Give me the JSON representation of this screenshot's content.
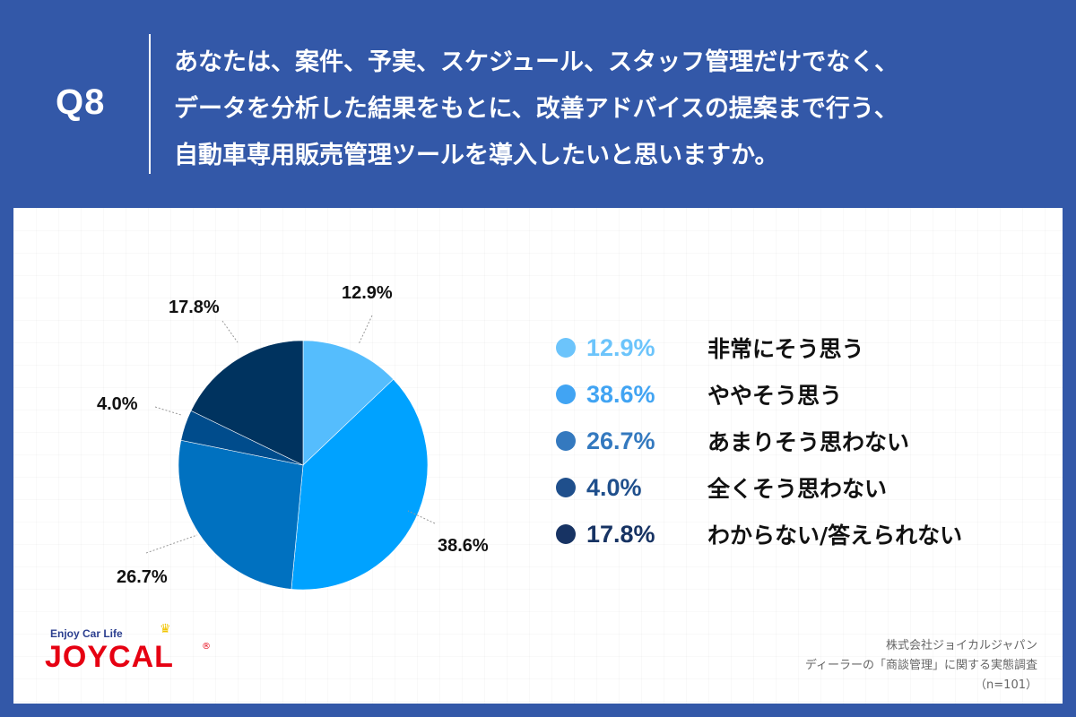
{
  "header": {
    "question_number": "Q8",
    "question_lines": [
      "あなたは、案件、予実、スケジュール、スタッフ管理だけでなく、",
      "データを分析した結果をもとに、改善アドバイスの提案まで行う、",
      "自動車専用販売管理ツールを導入したいと思いますか。"
    ]
  },
  "colors": {
    "background": "#3358a8",
    "panel": "#ffffff"
  },
  "chart_data": {
    "type": "pie",
    "title": "あなたは、案件、予実、スケジュール、スタッフ管理だけでなく、データを分析した結果をもとに、改善アドバイスの提案まで行う、自動車専用販売管理ツールを導入したいと思いますか。",
    "categories": [
      "非常にそう思う",
      "ややそう思う",
      "あまりそう思わない",
      "全くそう思わない",
      "わからない/答えられない"
    ],
    "values": [
      12.9,
      38.6,
      26.7,
      4.0,
      17.8
    ],
    "labels": [
      "12.9%",
      "38.6%",
      "26.7%",
      "4.0%",
      "17.8%"
    ],
    "colors": [
      "#55bdfd",
      "#00a2ff",
      "#0071c0",
      "#004c8c",
      "#00335f"
    ],
    "legend_colors": [
      "#6cc4fb",
      "#41a4f3",
      "#3479bf",
      "#1f4f8c",
      "#173363"
    ],
    "start_angle": "12 o'clock, clockwise",
    "legend_position": "right",
    "n": 101
  },
  "legend": [
    {
      "pct": "12.9%",
      "label": "非常にそう思う"
    },
    {
      "pct": "38.6%",
      "label": "ややそう思う"
    },
    {
      "pct": "26.7%",
      "label": "あまりそう思わない"
    },
    {
      "pct": "4.0%",
      "label": "全くそう思わない"
    },
    {
      "pct": "17.8%",
      "label": "わからない/答えられない"
    }
  ],
  "logo": {
    "tagline": "Enjoy Car Life",
    "name": "JOYCAL",
    "reg": "®"
  },
  "credit": {
    "company": "株式会社ジョイカルジャパン",
    "survey": "ディーラーの「商談管理」に関する実態調査",
    "sample": "（n=101）"
  }
}
